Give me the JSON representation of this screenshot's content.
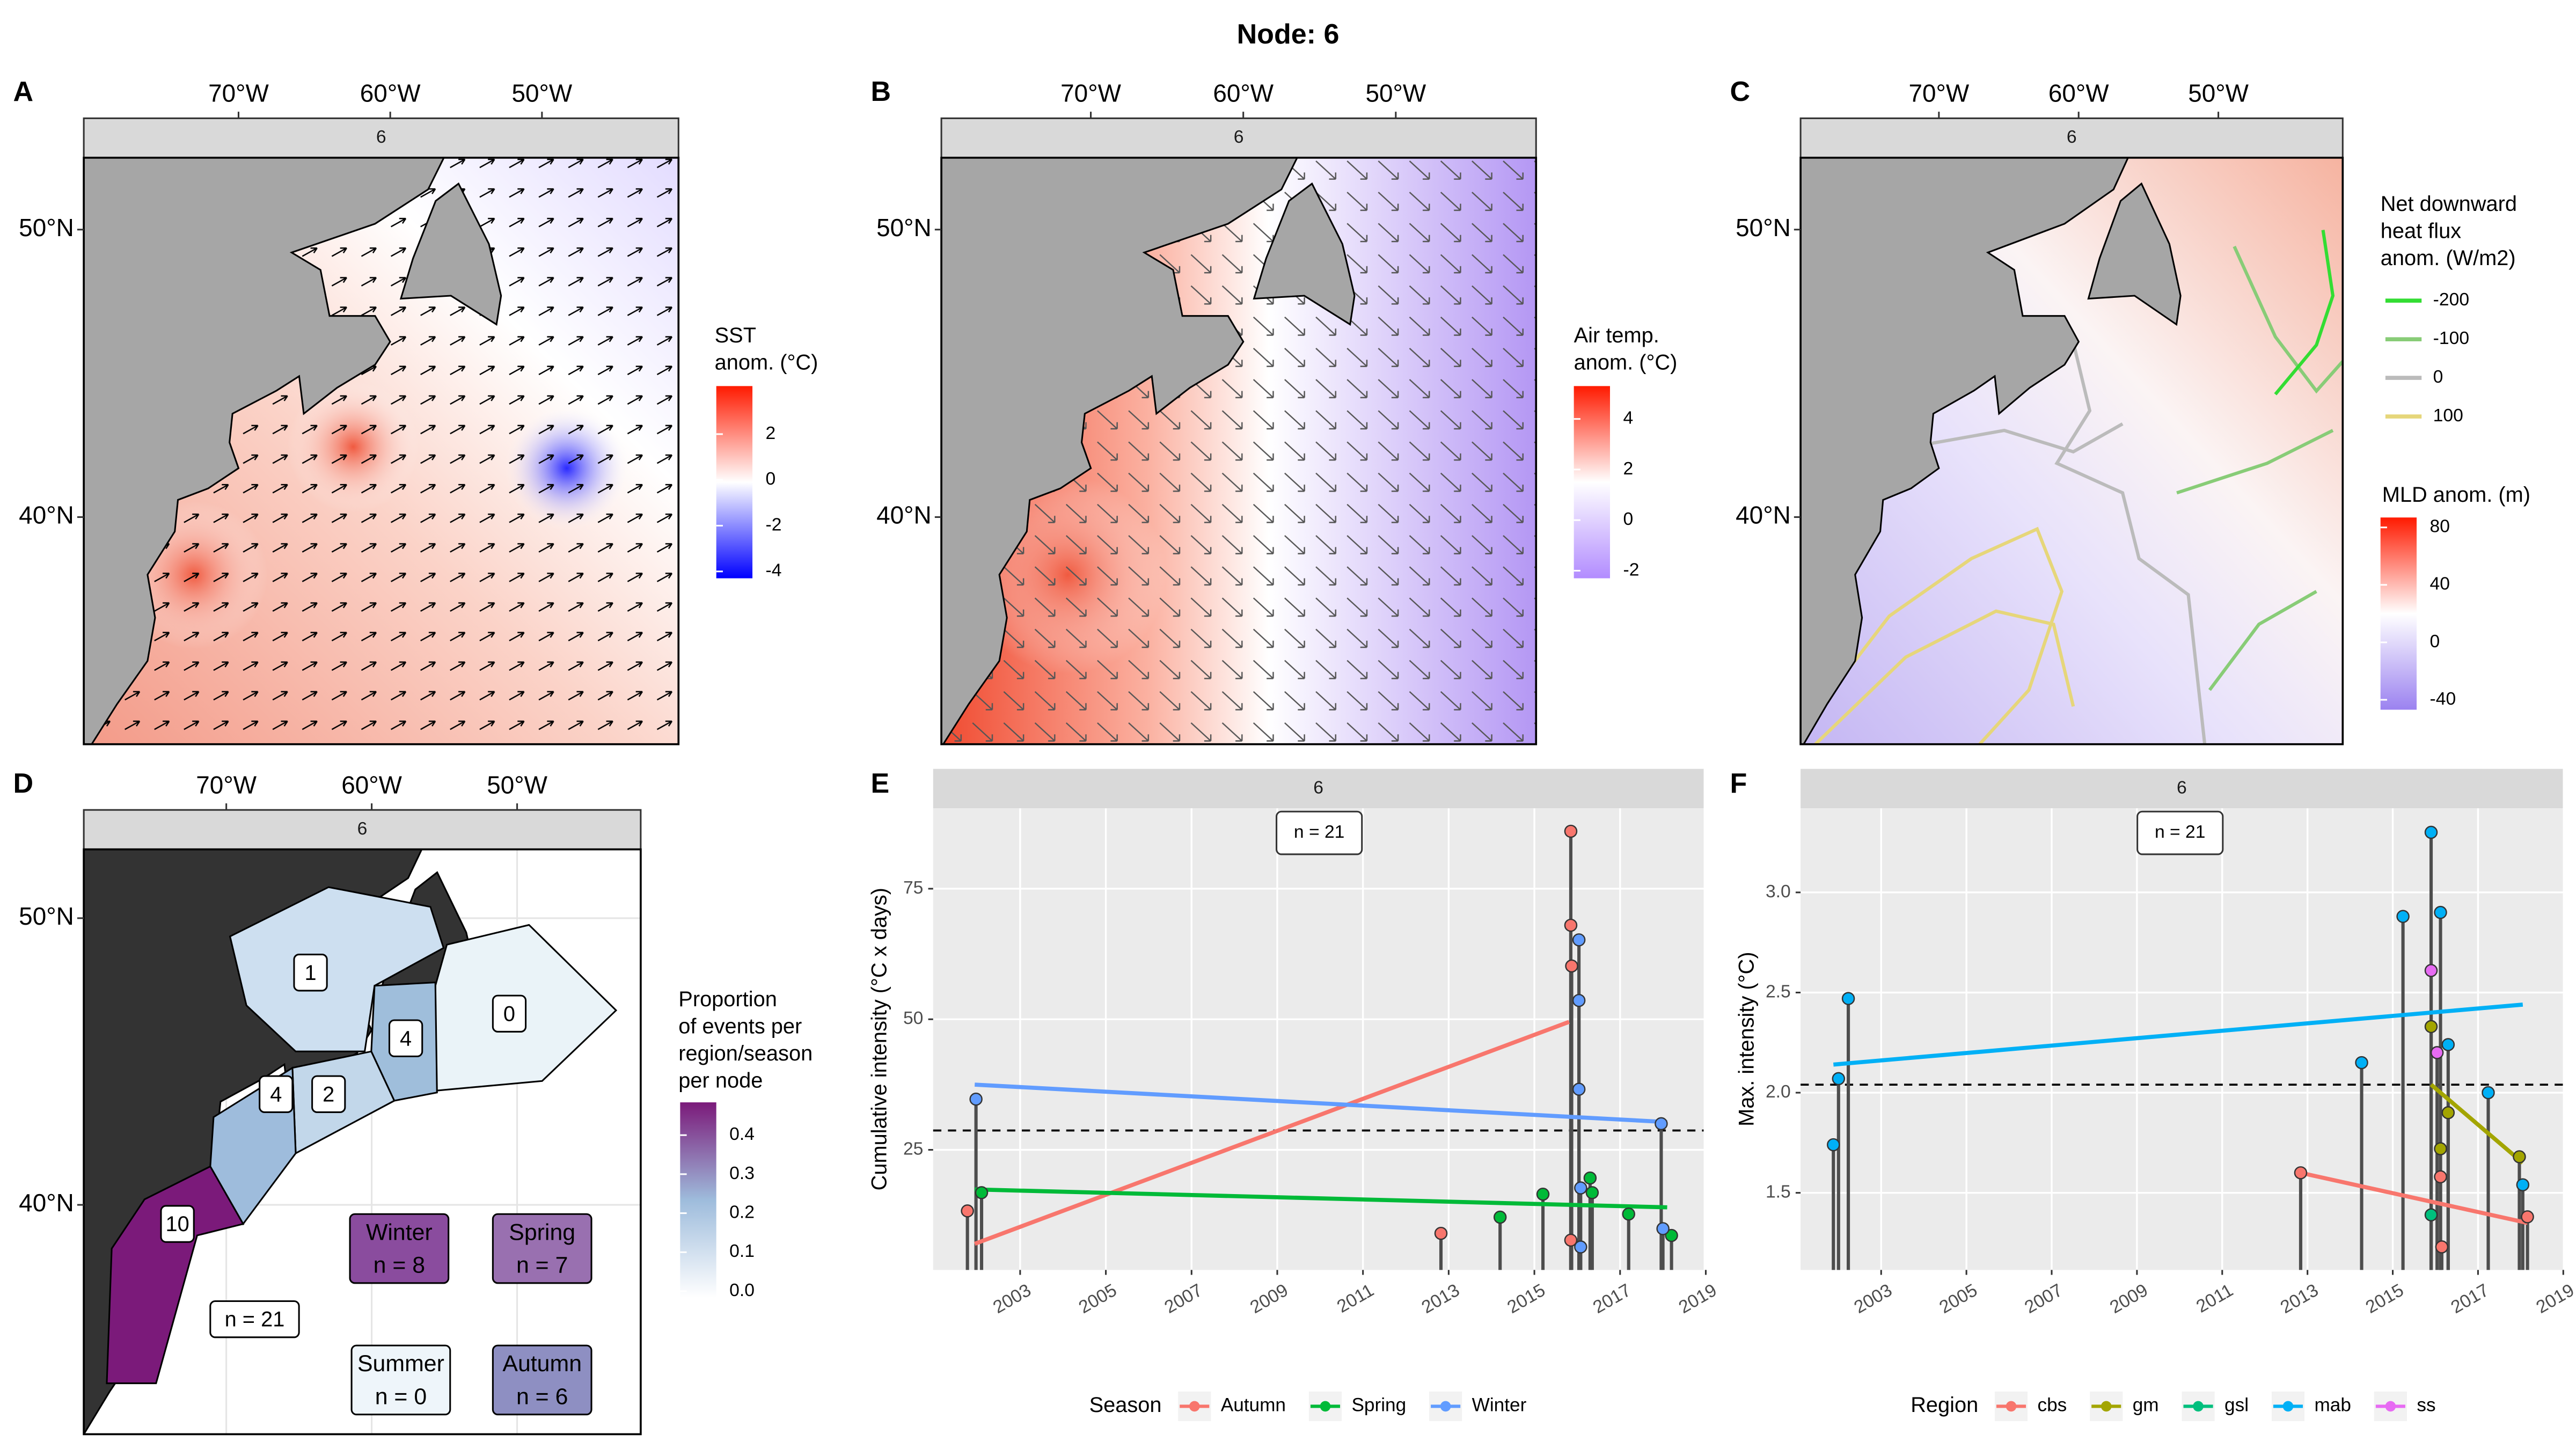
{
  "title": "Node: 6",
  "maps": [
    {
      "letter": "A",
      "strip": "6",
      "xlim": [
        -80.2,
        -41.0
      ],
      "ylim": [
        32.1,
        52.5
      ],
      "xticks": [
        {
          "value": -70,
          "label": "70°W"
        },
        {
          "value": -60,
          "label": "60°W"
        },
        {
          "value": -50,
          "label": "50°W"
        }
      ],
      "yticks": [
        {
          "value": 40,
          "label": "40°N"
        },
        {
          "value": 50,
          "label": "50°N"
        }
      ],
      "legend": {
        "title": [
          "SST",
          "anom. (°C)"
        ],
        "lim": [
          -4.3,
          4.1
        ],
        "ticks": [
          -4,
          -2,
          0,
          2
        ],
        "colors": [
          "#0000ff",
          "#ffffff",
          "#ff1a00"
        ]
      }
    },
    {
      "letter": "B",
      "strip": "6",
      "xlim": [
        -79.8,
        -40.8
      ],
      "ylim": [
        32.1,
        52.5
      ],
      "xticks": [
        {
          "value": -70,
          "label": "70°W"
        },
        {
          "value": -60,
          "label": "60°W"
        },
        {
          "value": -50,
          "label": "50°W"
        }
      ],
      "yticks": [
        {
          "value": 40,
          "label": "40°N"
        },
        {
          "value": 50,
          "label": "50°N"
        }
      ],
      "legend": {
        "title": [
          "Air temp.",
          "anom. (°C)"
        ],
        "lim": [
          -2.3,
          5.3
        ],
        "ticks": [
          -2,
          0,
          2,
          4
        ],
        "colors": [
          "#b28cff",
          "#ffffff",
          "#ff1a00"
        ]
      }
    },
    {
      "letter": "C",
      "strip": "6",
      "xlim": [
        -79.9,
        -41.1
      ],
      "ylim": [
        32.1,
        52.5
      ],
      "xticks": [
        {
          "value": -70,
          "label": "70°W"
        },
        {
          "value": -60,
          "label": "60°W"
        },
        {
          "value": -50,
          "label": "50°W"
        }
      ],
      "yticks": [
        {
          "value": 40,
          "label": "40°N"
        },
        {
          "value": 50,
          "label": "50°N"
        }
      ],
      "legend": {
        "title": [
          "MLD anom. (m)"
        ],
        "lim": [
          -46.9,
          86.9
        ],
        "ticks": [
          -40,
          0,
          40,
          80
        ],
        "colors": [
          "#9b82f0",
          "#ffffff",
          "#ff1a00"
        ]
      },
      "contour_legend": {
        "title": [
          "Net downward",
          "heat flux",
          "anom. (W/m2)"
        ],
        "levels": [
          -200,
          -100,
          0,
          100
        ],
        "colors": [
          "#33dd33",
          "#88cc77",
          "#bbbbbb",
          "#e6d67a"
        ]
      }
    },
    {
      "letter": "D",
      "strip": "6",
      "xlim": [
        -79.8,
        -41.5
      ],
      "ylim": [
        32.0,
        52.4
      ],
      "xticks": [
        {
          "value": -70,
          "label": "70°W"
        },
        {
          "value": -60,
          "label": "60°W"
        },
        {
          "value": -50,
          "label": "50°W"
        }
      ],
      "yticks": [
        {
          "value": 40,
          "label": "40°N"
        },
        {
          "value": 50,
          "label": "50°N"
        }
      ],
      "legend": {
        "title": [
          "Proportion",
          "of events per",
          "region/season",
          "per node"
        ],
        "lim": [
          -0.017,
          0.484
        ],
        "ticks": [
          {
            "value": 0,
            "label": "0.0"
          },
          0.1,
          0.2,
          0.3,
          0.4
        ],
        "colors": [
          "#ffffff",
          "#9ebcdc",
          "#7b1a7a"
        ]
      },
      "regions": [
        1,
        4,
        0,
        4,
        2,
        10
      ],
      "total": "n = 21",
      "seasons": [
        {
          "name": "Winter",
          "n": "n = 8"
        },
        {
          "name": "Spring",
          "n": "n = 7"
        },
        {
          "name": "Summer",
          "n": "n = 0"
        },
        {
          "name": "Autumn",
          "n": "n = 6"
        }
      ]
    }
  ],
  "chart_data": [
    {
      "type": "lollipop",
      "letter": "E",
      "strip": "6",
      "annotation": "n = 21",
      "y_label": "Cumulative intensity (°C x days)",
      "xlim": [
        2000.97,
        2018.95
      ],
      "ylim": [
        2.0,
        90.4
      ],
      "xticks": [
        2003,
        2005,
        2007,
        2009,
        2011,
        2013,
        2015,
        2017,
        2019
      ],
      "yticks": [
        25,
        50,
        75
      ],
      "grid": true,
      "hline": 28.7,
      "legend_title": "Season",
      "legend_position": "bottom",
      "series": [
        {
          "name": "Autumn",
          "color": "#F8766D",
          "x": [
            2001.77,
            2012.82,
            2015.85,
            2015.85,
            2015.87,
            2015.85
          ],
          "values": [
            13.3,
            9.0,
            86.0,
            68.0,
            60.2,
            7.7
          ],
          "trend_x": [
            2001.94,
            2015.81
          ],
          "trend_values": [
            7.0,
            49.5
          ]
        },
        {
          "name": "Spring",
          "color": "#00BA38",
          "x": [
            2002.1,
            2014.2,
            2015.2,
            2016.3,
            2016.35,
            2017.2,
            2018.2
          ],
          "values": [
            16.8,
            12.1,
            16.5,
            19.6,
            16.8,
            12.7,
            8.6
          ],
          "trend_x": [
            2001.94,
            2018.1
          ],
          "trend_values": [
            17.4,
            14.0
          ]
        },
        {
          "name": "Winter",
          "color": "#619CFF",
          "x": [
            2001.97,
            2016.04,
            2016.04,
            2016.04,
            2016.08,
            2016.08,
            2017.96,
            2018.0
          ],
          "values": [
            34.7,
            65.2,
            53.6,
            36.6,
            17.7,
            6.4,
            30.0,
            9.9
          ],
          "trend_x": [
            2001.94,
            2018.1
          ],
          "trend_values": [
            37.5,
            30.3
          ]
        }
      ]
    },
    {
      "type": "lollipop",
      "letter": "F",
      "strip": "6",
      "annotation": "n = 21",
      "y_label": "Max. intensity (°C)",
      "xlim": [
        2001.11,
        2018.99
      ],
      "ylim": [
        1.115,
        3.42
      ],
      "xticks": [
        2003,
        2005,
        2007,
        2009,
        2011,
        2013,
        2015,
        2017,
        2019
      ],
      "yticks": [
        1.5,
        {
          "value": 2,
          "label": "2.0"
        },
        2.5,
        {
          "value": 3,
          "label": "3.0"
        }
      ],
      "grid": true,
      "hline": 2.04,
      "legend_title": "Region",
      "legend_position": "bottom",
      "series": [
        {
          "name": "cbs",
          "color": "#F8766D",
          "x": [
            2012.84,
            2016.15,
            2016.12,
            2018.16
          ],
          "values": [
            1.6,
            1.23,
            1.58,
            1.38
          ],
          "trend_x": [
            2012.84,
            2018.16
          ],
          "trend_values": [
            1.6,
            1.35
          ]
        },
        {
          "name": "gm",
          "color": "#A3A500",
          "x": [
            2015.9,
            2016.12,
            2016.3,
            2017.97
          ],
          "values": [
            2.33,
            1.72,
            1.9,
            1.68
          ],
          "trend_x": [
            2015.9,
            2018.05
          ],
          "trend_values": [
            2.04,
            1.65
          ]
        },
        {
          "name": "gsl",
          "color": "#00BF7D",
          "x": [
            2015.9
          ],
          "values": [
            1.39
          ]
        },
        {
          "name": "mab",
          "color": "#00B0F6",
          "x": [
            2001.88,
            2002.0,
            2002.23,
            2014.27,
            2015.24,
            2015.9,
            2016.12,
            2016.3,
            2017.24,
            2018.05
          ],
          "values": [
            1.74,
            2.07,
            2.47,
            2.15,
            2.88,
            3.3,
            2.9,
            2.24,
            2.0,
            1.54
          ],
          "trend_x": [
            2001.88,
            2018.05
          ],
          "trend_values": [
            2.14,
            2.44
          ]
        },
        {
          "name": "ss",
          "color": "#E76BF3",
          "x": [
            2015.9,
            2016.04
          ],
          "values": [
            2.61,
            2.2
          ]
        }
      ]
    }
  ]
}
